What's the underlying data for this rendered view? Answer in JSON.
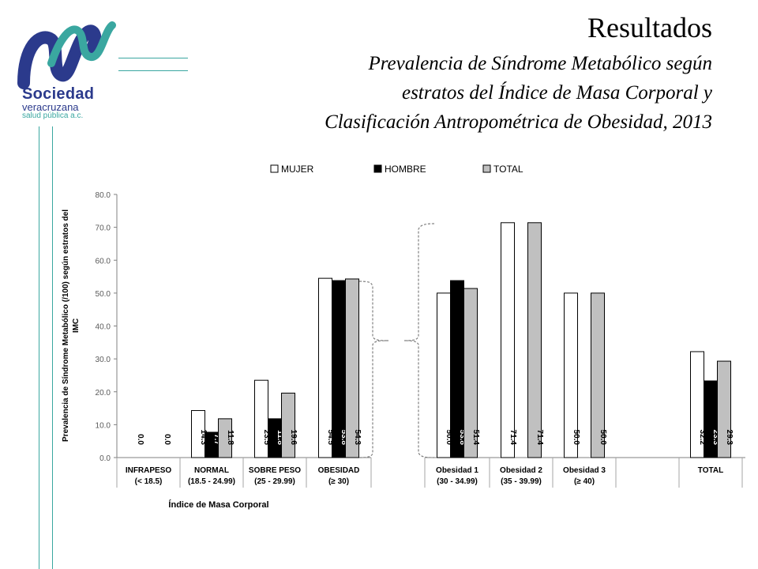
{
  "header": {
    "title": "Resultados",
    "subtitle_lines": [
      "Prevalencia de Síndrome Metabólico según",
      "estratos del Índice de Masa Corporal y",
      "Clasificación Antropométrica de Obesidad, 2013"
    ]
  },
  "logo": {
    "line1": "Sociedad",
    "line2": "veracruzana",
    "line3": "salud pública a.c.",
    "colors": {
      "navy": "#2b3a8c",
      "teal": "#3aa7a0"
    }
  },
  "chart_data": {
    "type": "bar",
    "title": "",
    "xlabel": "Índice de Masa Corporal",
    "ylabel_lines": [
      "Prevalencia de Síndrome Metabólico (/100)  según estratos del",
      "IMC"
    ],
    "ylim": [
      0,
      80
    ],
    "yticks": [
      "0.0",
      "10.0",
      "20.0",
      "30.0",
      "40.0",
      "50.0",
      "60.0",
      "70.0",
      "80.0"
    ],
    "legend_position": "top",
    "grid": false,
    "categories": [
      [
        "INFRAPESO",
        "(< 18.5)"
      ],
      [
        "NORMAL",
        "(18.5 - 24.99)"
      ],
      [
        "SOBRE PESO",
        "(25 - 29.99)"
      ],
      [
        "OBESIDAD",
        "(≥ 30)"
      ],
      [
        "Obesidad 1",
        "(30 - 34.99)"
      ],
      [
        "Obesidad 2",
        "(35 - 39.99)"
      ],
      [
        "Obesidad 3",
        "(≥ 40)"
      ],
      [
        "TOTAL",
        ""
      ]
    ],
    "series": [
      {
        "name": "MUJER",
        "color": "#ffffff",
        "label_color": "#000000",
        "values": [
          0.0,
          14.3,
          23.5,
          54.5,
          50.0,
          71.4,
          50.0,
          32.2
        ],
        "labels": [
          "0.0",
          "14.3",
          "23.5",
          "54.5",
          "50.0",
          "71.4",
          "50.0",
          "32.2"
        ]
      },
      {
        "name": "HOMBRE",
        "color": "#000000",
        "label_color": "#ffffff",
        "values": [
          null,
          7.7,
          11.8,
          53.8,
          53.8,
          null,
          null,
          23.3
        ],
        "labels": [
          "",
          "7.7",
          "11.8",
          "53.8",
          "53.8",
          "",
          "",
          "23.3"
        ]
      },
      {
        "name": "TOTAL",
        "color": "#c0c0c0",
        "label_color": "#000000",
        "values": [
          0.0,
          11.8,
          19.6,
          54.3,
          51.4,
          71.4,
          50.0,
          29.3
        ],
        "labels": [
          "0.0",
          "11.8",
          "19.6",
          "54.3",
          "51.4",
          "71.4",
          "50.0",
          "29.3"
        ]
      }
    ]
  }
}
